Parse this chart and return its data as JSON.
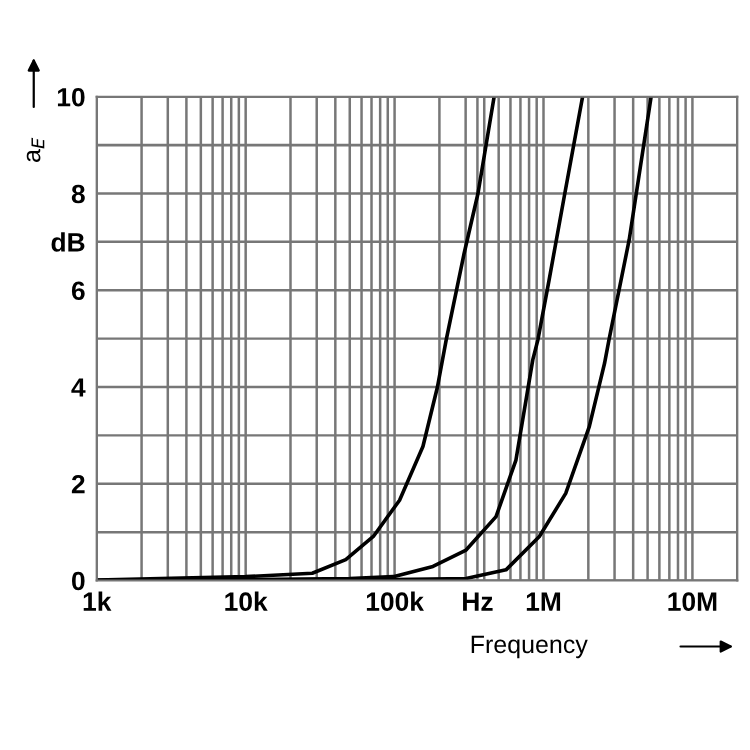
{
  "chart_data": {
    "type": "line",
    "xlabel": "Frequency",
    "ylabel": "a$_{E}$",
    "log": "x",
    "grid": true,
    "marker": "none",
    "line_style": "solid",
    "xlim": [
      1000,
      20000000
    ],
    "ylim": [
      0,
      10
    ],
    "xticks": [
      {
        "value": 1000,
        "label": "1k"
      },
      {
        "value": 10000,
        "label": "10k"
      },
      {
        "value": 100000,
        "label": "100k"
      },
      {
        "value": 360000,
        "label": "Hz"
      },
      {
        "value": 1000000,
        "label": "1M"
      },
      {
        "value": 10000000,
        "label": "10M"
      }
    ],
    "yticks": [
      0,
      {
        "value": 1,
        "label": null
      },
      2,
      {
        "value": 3,
        "label": null
      },
      4,
      {
        "value": 5,
        "label": null
      },
      6,
      {
        "value": 7,
        "label": "dB"
      },
      8,
      {
        "value": 9,
        "label": null
      },
      10
    ],
    "series": [
      {
        "color": "#000000",
        "x": [
          1000,
          10000,
          28000,
          47000,
          72000,
          108000,
          155000,
          194000,
          222000,
          293000,
          363000,
          466000
        ],
        "values": [
          0.01,
          0.08,
          0.15,
          0.43,
          0.91,
          1.66,
          2.77,
          4.0,
          4.97,
          6.76,
          8.0,
          10
        ]
      },
      {
        "color": "#000000",
        "x": [
          1000,
          10000,
          50000,
          98000,
          181000,
          302000,
          480000,
          653000,
          847000,
          916000,
          1090000,
          1390000,
          1830000
        ],
        "values": [
          0,
          0.02,
          0.04,
          0.08,
          0.29,
          0.63,
          1.32,
          2.49,
          4.56,
          4.97,
          6.21,
          8.0,
          10
        ]
      },
      {
        "color": "#000000",
        "x": [
          1000,
          100000,
          302000,
          560000,
          938000,
          1410000,
          2030000,
          2570000,
          2750000,
          3760000,
          5280000
        ],
        "values": [
          0,
          0.02,
          0.04,
          0.22,
          0.91,
          1.8,
          3.18,
          4.49,
          4.97,
          7.04,
          10
        ]
      }
    ]
  }
}
